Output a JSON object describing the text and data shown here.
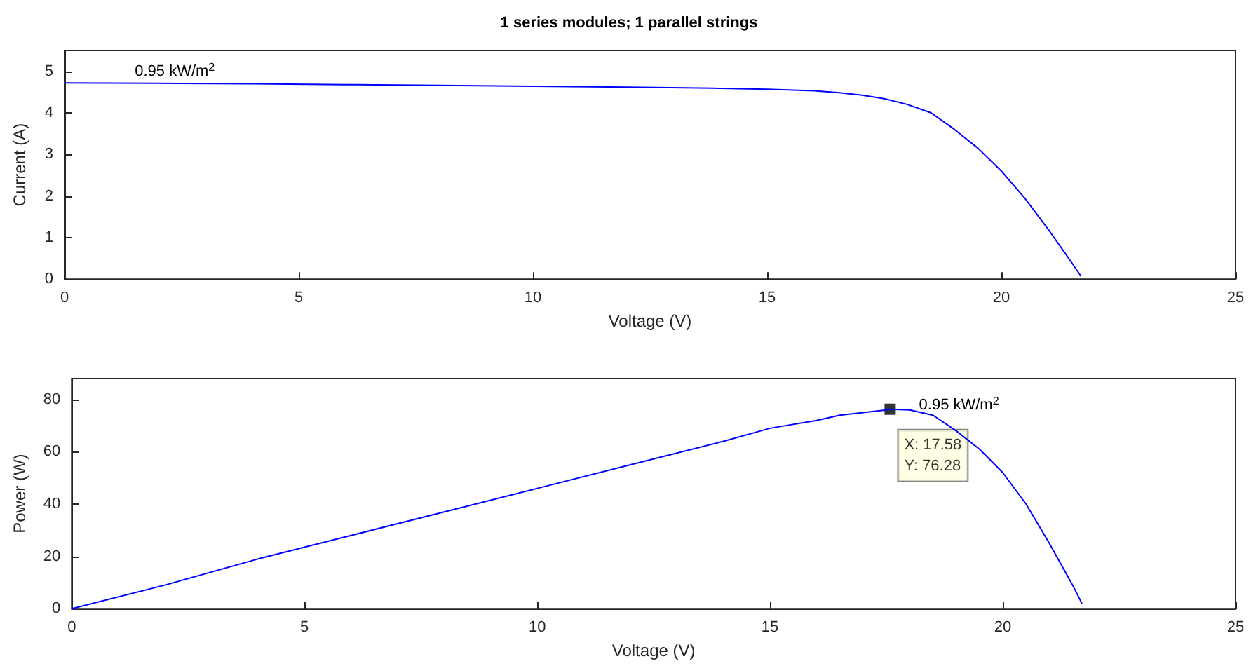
{
  "chart_data": [
    {
      "type": "line",
      "title": "1 series modules; 1 parallel strings",
      "xlabel": "Voltage (V)",
      "ylabel": "Current (A)",
      "xlim": [
        0,
        25
      ],
      "xticks": [
        0,
        5,
        10,
        15,
        20,
        25
      ],
      "ylim": [
        0,
        5.5
      ],
      "yticks": [
        0,
        1,
        2,
        3,
        4,
        5
      ],
      "marker": "none",
      "annotations": [
        {
          "text": "0.95 kW/m$^{2}$",
          "x": 1.5,
          "y": 4.75
        }
      ],
      "series": [
        {
          "color": "#0000ff",
          "x": [
            0,
            2,
            4,
            6,
            8,
            10,
            12,
            14,
            15,
            16,
            16.5,
            17,
            17.5,
            18,
            18.5,
            19,
            19.5,
            20,
            20.5,
            21,
            21.5,
            21.7
          ],
          "values": [
            4.72,
            4.71,
            4.7,
            4.68,
            4.66,
            4.64,
            4.62,
            4.59,
            4.57,
            4.53,
            4.49,
            4.43,
            4.34,
            4.2,
            4.0,
            3.6,
            3.15,
            2.6,
            1.95,
            1.2,
            0.4,
            0.07
          ]
        }
      ]
    },
    {
      "type": "line",
      "xlabel": "Voltage (V)",
      "ylabel": "Power (W)",
      "xlim": [
        0,
        25
      ],
      "xticks": [
        0,
        5,
        10,
        15,
        20,
        25
      ],
      "ylim": [
        0,
        88
      ],
      "yticks": [
        0,
        20,
        40,
        60,
        80
      ],
      "marker": "none",
      "annotations": [
        {
          "text": "0.95 kW/m$^{2}$",
          "x": 18.2,
          "y": 74
        }
      ],
      "series": [
        {
          "color": "#0000ff",
          "x": [
            0,
            2,
            4,
            6,
            8,
            10,
            12,
            14,
            15,
            16,
            16.5,
            17,
            17.5,
            17.58,
            18,
            18.5,
            19,
            19.5,
            20,
            20.5,
            21,
            21.5,
            21.7
          ],
          "values": [
            0,
            9,
            19,
            28,
            37,
            46,
            55,
            64,
            69,
            72,
            74,
            75,
            76,
            76.28,
            76,
            74,
            68,
            61,
            52,
            40,
            25,
            9,
            2
          ]
        },
        {
          "type": "scatter",
          "marker": "square",
          "color": "#000000",
          "x": [
            17.58
          ],
          "values": [
            76.28
          ],
          "value_labels": [
            "X: 17.58\nY: 76.28"
          ]
        }
      ]
    }
  ]
}
